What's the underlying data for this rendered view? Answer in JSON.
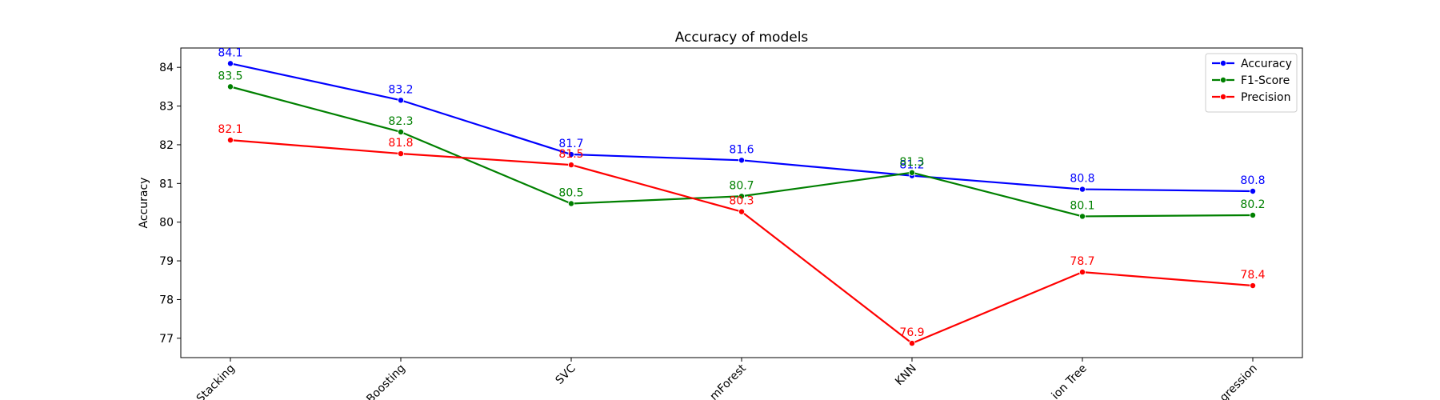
{
  "chart_data": {
    "type": "line",
    "title": "Accuracy of models",
    "xlabel": "",
    "ylabel": "Accuracy",
    "categories": [
      "Stacking",
      "Boosting",
      "SVC",
      "mForest",
      "KNN",
      "ion Tree",
      "gression"
    ],
    "ylim": [
      76.5,
      84.5
    ],
    "yticks": [
      77,
      78,
      79,
      80,
      81,
      82,
      83,
      84
    ],
    "grid": false,
    "legend_position": "top-right",
    "series": [
      {
        "name": "Accuracy",
        "color": "#0000ff",
        "values": [
          84.1,
          83.15,
          81.75,
          81.6,
          81.2,
          80.85,
          80.8
        ],
        "labels": [
          "84.1",
          "83.2",
          "81.7",
          "81.6",
          "81.2",
          "80.8",
          "80.8"
        ]
      },
      {
        "name": "F1-Score",
        "color": "#008000",
        "values": [
          83.5,
          82.33,
          80.48,
          80.67,
          81.28,
          80.15,
          80.18
        ],
        "labels": [
          "83.5",
          "82.3",
          "80.5",
          "80.7",
          "81.3",
          "80.1",
          "80.2"
        ]
      },
      {
        "name": "Precision",
        "color": "#ff0000",
        "values": [
          82.12,
          81.77,
          81.48,
          80.27,
          76.87,
          78.71,
          78.36
        ],
        "labels": [
          "82.1",
          "81.8",
          "81.5",
          "80.3",
          "76.9",
          "78.7",
          "78.4"
        ]
      }
    ]
  }
}
